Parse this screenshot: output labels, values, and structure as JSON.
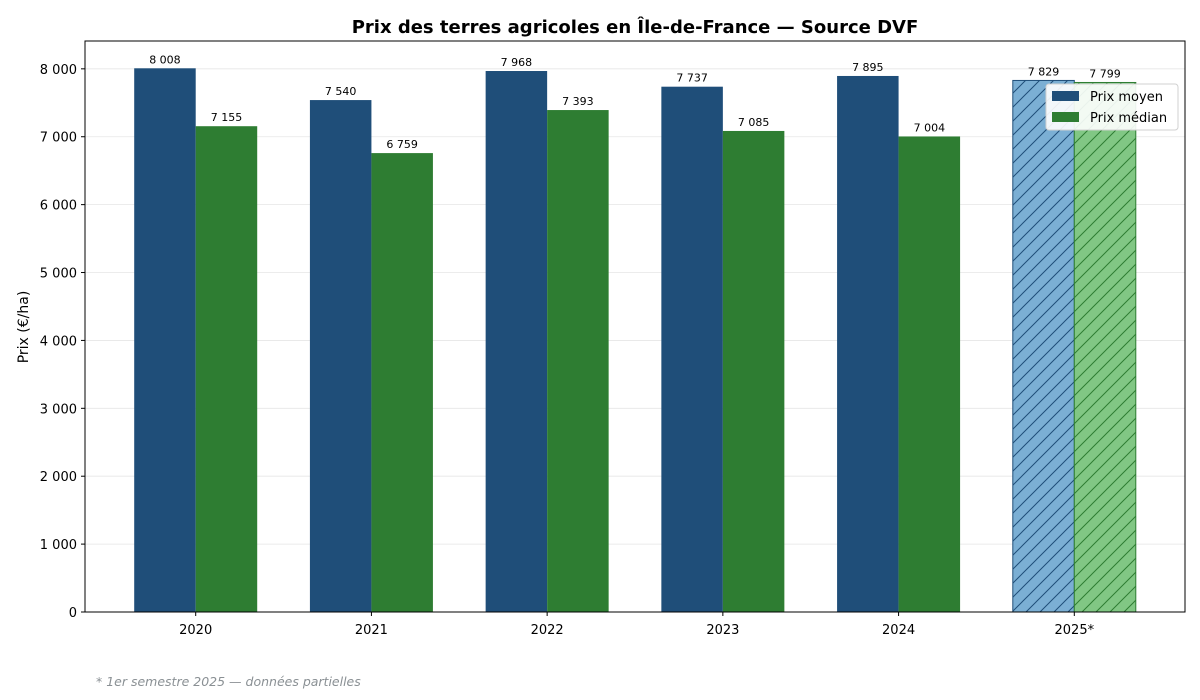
{
  "chart_data": {
    "type": "bar",
    "title": "Prix des terres agricoles en Île-de-France — Source DVF",
    "xlabel": "",
    "ylabel": "Prix (€/ha)",
    "categories": [
      "2020",
      "2021",
      "2022",
      "2023",
      "2024",
      "2025*"
    ],
    "series": [
      {
        "name": "Prix moyen",
        "values": [
          8008,
          7540,
          7968,
          7737,
          7895,
          7829
        ],
        "labels": [
          "8 008",
          "7 540",
          "7 968",
          "7 737",
          "7 895",
          "7 829"
        ],
        "color": "#1f4e79",
        "partial_color": "#7bafd4"
      },
      {
        "name": "Prix médian",
        "values": [
          7155,
          6759,
          7393,
          7085,
          7004,
          7799
        ],
        "labels": [
          "7 155",
          "6 759",
          "7 393",
          "7 085",
          "7 004",
          "7 799"
        ],
        "color": "#2e7d32",
        "partial_color": "#81c784"
      }
    ],
    "partial_categories": [
      "2025*"
    ],
    "partial_style": "hatched",
    "ylim": [
      0,
      8410
    ],
    "yticks": [
      0,
      1000,
      2000,
      3000,
      4000,
      5000,
      6000,
      7000,
      8000
    ],
    "ytick_labels": [
      "0",
      "1 000",
      "2 000",
      "3 000",
      "4 000",
      "5 000",
      "6 000",
      "7 000",
      "8 000"
    ],
    "grid": "horizontal",
    "legend_position": "top-right",
    "footnote": "* 1er semestre 2025 — données partielles"
  }
}
